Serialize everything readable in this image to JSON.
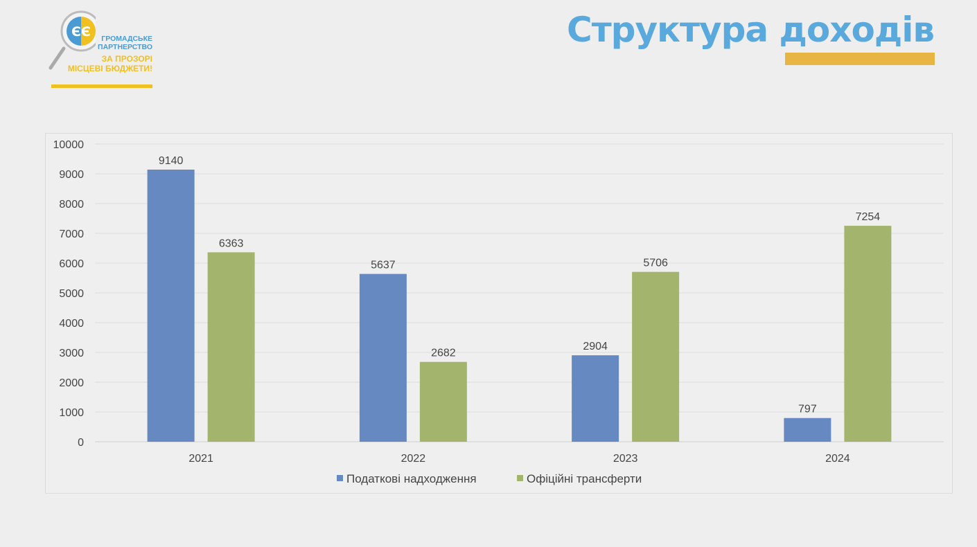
{
  "logo": {
    "line1": "Громадське",
    "line2": "партнерство",
    "line3": "За прозорі",
    "line4": "місцеві бюджети!"
  },
  "title": "Структура доходів",
  "colors": {
    "blue": "#6589c0",
    "green": "#a3b56d",
    "title": "#5aa9dd",
    "accent": "#e8b542"
  },
  "chart_data": {
    "type": "bar",
    "categories": [
      "2021",
      "2022",
      "2023",
      "2024"
    ],
    "series": [
      {
        "name": "Податкові надходження",
        "values": [
          9140,
          5637,
          2904,
          797
        ],
        "color": "#6589c0"
      },
      {
        "name": "Офіційні трансферти",
        "values": [
          6363,
          2682,
          5706,
          7254
        ],
        "color": "#a3b56d"
      }
    ],
    "ylim": [
      0,
      10000
    ],
    "yticks": [
      0,
      1000,
      2000,
      3000,
      4000,
      5000,
      6000,
      7000,
      8000,
      9000,
      10000
    ],
    "grid": true,
    "legend": "bottom",
    "data_labels": true
  }
}
